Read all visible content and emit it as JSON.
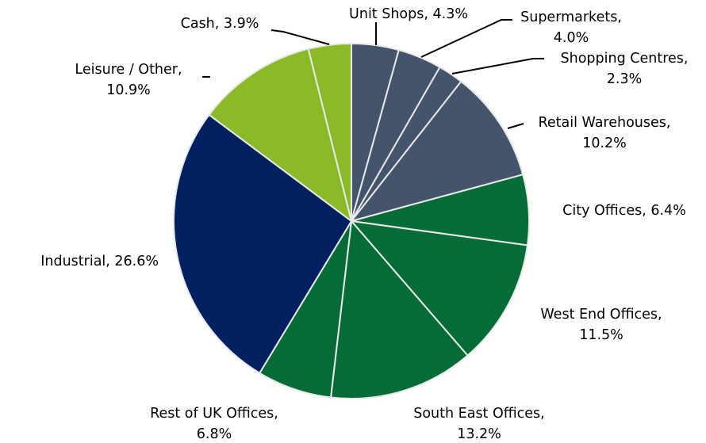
{
  "chart_data": {
    "type": "pie",
    "values": [
      4.3,
      4.0,
      2.3,
      10.2,
      6.4,
      11.5,
      13.2,
      6.8,
      26.6,
      10.9,
      3.9
    ],
    "value_labels": [
      [
        "Unit Shops, 4.3%"
      ],
      [
        "Supermarkets,",
        "4.0%"
      ],
      [
        "Shopping Centres,",
        "2.3%"
      ],
      [
        "Retail Warehouses,",
        "10.2%"
      ],
      [
        "City Offices, 6.4%"
      ],
      [
        "West End Offices,",
        "11.5%"
      ],
      [
        "South East Offices,",
        "13.2%"
      ],
      [
        "Rest of UK Offices,",
        "6.8%"
      ],
      [
        "Industrial, 26.6%"
      ],
      [
        "Leisure / Other,",
        "10.9%"
      ],
      [
        "Cash, 3.9%"
      ]
    ],
    "colors": [
      "#44546a",
      "#44546a",
      "#44546a",
      "#44546a",
      "#056b37",
      "#056b37",
      "#056b37",
      "#056b37",
      "#002060",
      "#8aba28",
      "#8aba28"
    ]
  }
}
